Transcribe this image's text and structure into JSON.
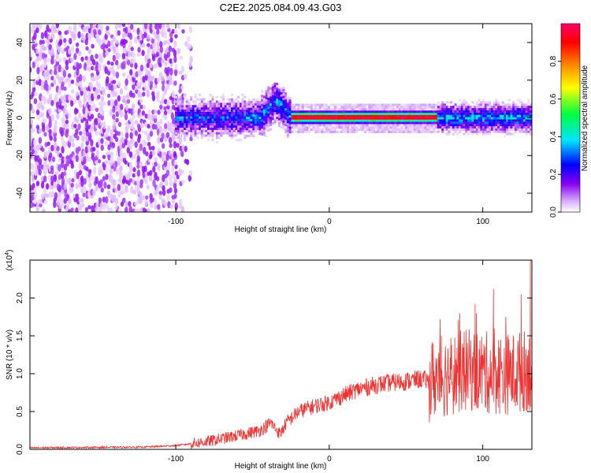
{
  "title": "C2E2.2025.084.09.43.G03",
  "chart_data": [
    {
      "type": "heatmap",
      "name": "spectrogram",
      "xlabel": "Height of straight line (km)",
      "ylabel": "Frequency (Hz)",
      "xlim": [
        -195,
        132
      ],
      "ylim": [
        -50,
        50
      ],
      "xticks": [
        -100,
        0,
        100
      ],
      "yticks": [
        -40,
        -20,
        0,
        20,
        40
      ],
      "colorbar": {
        "label": "Normalized spectral amplitude",
        "range": [
          0.0,
          1.0
        ],
        "ticks": [
          0.0,
          0.2,
          0.4,
          0.6,
          0.8
        ],
        "colors": [
          "#ffffff",
          "#d6aaff",
          "#8800ee",
          "#0000ff",
          "#00e5ff",
          "#00ff40",
          "#ffff00",
          "#ff8800",
          "#ff0000",
          "#ff0066"
        ]
      },
      "notes": {
        "noise_region_km": [
          -195,
          -90
        ],
        "signal_center_hz": 0,
        "signal_strongest_km": [
          -25,
          70
        ],
        "signal_bump_km": -35,
        "signal_bump_hz": 8
      }
    },
    {
      "type": "line",
      "name": "snr",
      "xlabel": "Height of straight line (km)",
      "ylabel": "SNR (10 * v/v)",
      "scale_label": "(x10",
      "scale_exp": "4",
      "xlim": [
        -195,
        132
      ],
      "ylim": [
        0,
        2.5
      ],
      "xticks": [
        -100,
        0,
        100
      ],
      "yticks": [
        0.0,
        0.5,
        1.0,
        1.5,
        2.0
      ],
      "line_color": "#ee3333",
      "envelope": {
        "x": [
          -195,
          -120,
          -100,
          -80,
          -60,
          -45,
          -38,
          -32,
          -28,
          -20,
          -10,
          0,
          10,
          20,
          30,
          40,
          50,
          60,
          65,
          70,
          75,
          80,
          90,
          100,
          110,
          120,
          130,
          132
        ],
        "y": [
          0.02,
          0.03,
          0.05,
          0.1,
          0.18,
          0.25,
          0.35,
          0.2,
          0.35,
          0.5,
          0.57,
          0.62,
          0.72,
          0.8,
          0.85,
          0.88,
          0.9,
          0.93,
          0.9,
          0.95,
          0.97,
          1.0,
          1.05,
          1.02,
          1.0,
          1.0,
          1.05,
          1.0
        ]
      },
      "peaks": [
        {
          "x": 73,
          "y": 1.5
        },
        {
          "x": 85,
          "y": 1.8
        },
        {
          "x": 95,
          "y": 1.92
        },
        {
          "x": 107,
          "y": 2.12
        },
        {
          "x": 115,
          "y": 1.75
        },
        {
          "x": 125,
          "y": 2.05
        },
        {
          "x": 131,
          "y": 2.5
        }
      ]
    }
  ]
}
